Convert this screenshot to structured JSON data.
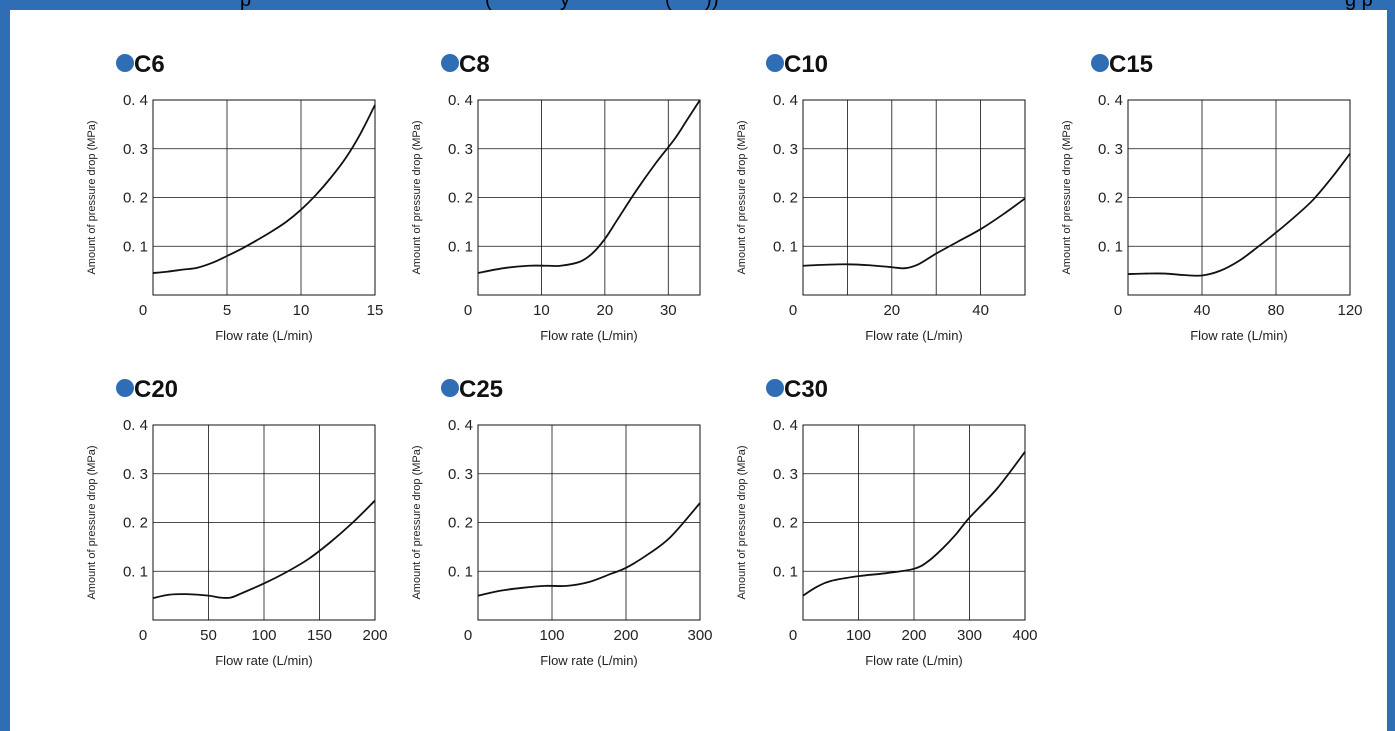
{
  "header_fragments": [
    "p",
    "(",
    "y",
    "(",
    ")",
    ")",
    "g p"
  ],
  "colors": {
    "frame": "#2f6eb5",
    "bullet": "#2f6eb5",
    "line": "#111111",
    "grid": "#111111"
  },
  "chart_data": [
    {
      "type": "line",
      "title": "C6",
      "xlabel": "Flow rate (L/min)",
      "ylabel": "Amount of pressure drop (MPa)",
      "xlim": [
        0,
        15
      ],
      "ylim": [
        0,
        0.4
      ],
      "xticks": [
        0,
        5,
        10,
        15
      ],
      "xtick_labels": [
        "0",
        "5",
        "10",
        "15"
      ],
      "yticks": [
        0.1,
        0.2,
        0.3,
        0.4
      ],
      "ytick_labels": [
        "0. 1",
        "0. 2",
        "0. 3",
        "0. 4"
      ],
      "series": [
        {
          "x": [
            0,
            1,
            2,
            3,
            4,
            5,
            6,
            7,
            8,
            9,
            10,
            11,
            12,
            13,
            14,
            15
          ],
          "y": [
            0.045,
            0.048,
            0.052,
            0.056,
            0.066,
            0.08,
            0.095,
            0.112,
            0.13,
            0.15,
            0.175,
            0.205,
            0.24,
            0.28,
            0.33,
            0.39
          ]
        }
      ]
    },
    {
      "type": "line",
      "title": "C8",
      "xlabel": "Flow rate (L/min)",
      "ylabel": "Amount of pressure drop (MPa)",
      "xlim": [
        0,
        35
      ],
      "ylim": [
        0,
        0.4
      ],
      "xticks": [
        0,
        10,
        20,
        30
      ],
      "xtick_labels": [
        "0",
        "10",
        "20",
        "30"
      ],
      "yticks": [
        0.1,
        0.2,
        0.3,
        0.4
      ],
      "ytick_labels": [
        "0. 1",
        "0. 2",
        "0. 3",
        "0. 4"
      ],
      "series": [
        {
          "x": [
            0,
            4,
            8,
            11,
            13,
            16,
            18,
            20,
            22,
            25,
            28,
            31,
            33,
            35
          ],
          "y": [
            0.045,
            0.055,
            0.06,
            0.06,
            0.06,
            0.068,
            0.085,
            0.115,
            0.155,
            0.215,
            0.27,
            0.32,
            0.36,
            0.4
          ]
        }
      ]
    },
    {
      "type": "line",
      "title": "C10",
      "xlabel": "Flow rate (L/min)",
      "ylabel": "Amount of pressure drop (MPa)",
      "xlim": [
        0,
        50
      ],
      "ylim": [
        0,
        0.4
      ],
      "xticks": [
        0,
        20,
        40
      ],
      "xtick_labels": [
        "0",
        "20",
        "40"
      ],
      "vgrid": [
        10,
        20,
        30,
        40
      ],
      "yticks": [
        0.1,
        0.2,
        0.3,
        0.4
      ],
      "ytick_labels": [
        "0. 1",
        "0. 2",
        "0. 3",
        "0. 4"
      ],
      "series": [
        {
          "x": [
            0,
            5,
            10,
            15,
            20,
            23,
            26,
            30,
            35,
            40,
            45,
            50
          ],
          "y": [
            0.06,
            0.062,
            0.063,
            0.061,
            0.057,
            0.055,
            0.063,
            0.085,
            0.11,
            0.135,
            0.165,
            0.198
          ]
        }
      ]
    },
    {
      "type": "line",
      "title": "C15",
      "xlabel": "Flow rate (L/min)",
      "ylabel": "Amount of pressure drop (MPa)",
      "xlim": [
        0,
        120
      ],
      "ylim": [
        0,
        0.4
      ],
      "xticks": [
        0,
        40,
        80,
        120
      ],
      "xtick_labels": [
        "0",
        "40",
        "80",
        "120"
      ],
      "yticks": [
        0.1,
        0.2,
        0.3,
        0.4
      ],
      "ytick_labels": [
        "0. 1",
        "0. 2",
        "0. 3",
        "0. 4"
      ],
      "series": [
        {
          "x": [
            0,
            10,
            20,
            30,
            40,
            50,
            60,
            70,
            80,
            90,
            100,
            110,
            120
          ],
          "y": [
            0.043,
            0.044,
            0.044,
            0.041,
            0.04,
            0.05,
            0.07,
            0.098,
            0.128,
            0.16,
            0.195,
            0.24,
            0.29
          ]
        }
      ]
    },
    {
      "type": "line",
      "title": "C20",
      "xlabel": "Flow rate (L/min)",
      "ylabel": "Amount of pressure drop (MPa)",
      "xlim": [
        0,
        200
      ],
      "ylim": [
        0,
        0.4
      ],
      "xticks": [
        0,
        50,
        100,
        150,
        200
      ],
      "xtick_labels": [
        "0",
        "50",
        "100",
        "150",
        "200"
      ],
      "vgrid": [
        50,
        100,
        150
      ],
      "yticks": [
        0.1,
        0.2,
        0.3,
        0.4
      ],
      "ytick_labels": [
        "0. 1",
        "0. 2",
        "0. 3",
        "0. 4"
      ],
      "series": [
        {
          "x": [
            0,
            15,
            30,
            50,
            60,
            70,
            80,
            100,
            120,
            140,
            160,
            180,
            200
          ],
          "y": [
            0.045,
            0.052,
            0.053,
            0.05,
            0.046,
            0.046,
            0.055,
            0.075,
            0.098,
            0.125,
            0.16,
            0.2,
            0.245
          ]
        }
      ]
    },
    {
      "type": "line",
      "title": "C25",
      "xlabel": "Flow rate (L/min)",
      "ylabel": "Amount of pressure drop (MPa)",
      "xlim": [
        0,
        300
      ],
      "ylim": [
        0,
        0.4
      ],
      "xticks": [
        0,
        100,
        200,
        300
      ],
      "xtick_labels": [
        "0",
        "100",
        "200",
        "300"
      ],
      "yticks": [
        0.1,
        0.2,
        0.3,
        0.4
      ],
      "ytick_labels": [
        "0. 1",
        "0. 2",
        "0. 3",
        "0. 4"
      ],
      "series": [
        {
          "x": [
            0,
            30,
            60,
            90,
            120,
            150,
            180,
            200,
            230,
            260,
            300
          ],
          "y": [
            0.05,
            0.06,
            0.066,
            0.07,
            0.07,
            0.078,
            0.095,
            0.107,
            0.135,
            0.17,
            0.24
          ]
        }
      ]
    },
    {
      "type": "line",
      "title": "C30",
      "xlabel": "Flow rate (L/min)",
      "ylabel": "Amount of pressure drop (MPa)",
      "xlim": [
        0,
        400
      ],
      "ylim": [
        0,
        0.4
      ],
      "xticks": [
        0,
        100,
        200,
        300,
        400
      ],
      "xtick_labels": [
        "0",
        "100",
        "200",
        "300",
        "400"
      ],
      "yticks": [
        0.1,
        0.2,
        0.3,
        0.4
      ],
      "ytick_labels": [
        "0. 1",
        "0. 2",
        "0. 3",
        "0. 4"
      ],
      "series": [
        {
          "x": [
            0,
            25,
            50,
            100,
            150,
            200,
            225,
            250,
            275,
            300,
            350,
            400
          ],
          "y": [
            0.05,
            0.068,
            0.08,
            0.09,
            0.096,
            0.105,
            0.12,
            0.145,
            0.175,
            0.21,
            0.27,
            0.345
          ]
        }
      ]
    }
  ]
}
